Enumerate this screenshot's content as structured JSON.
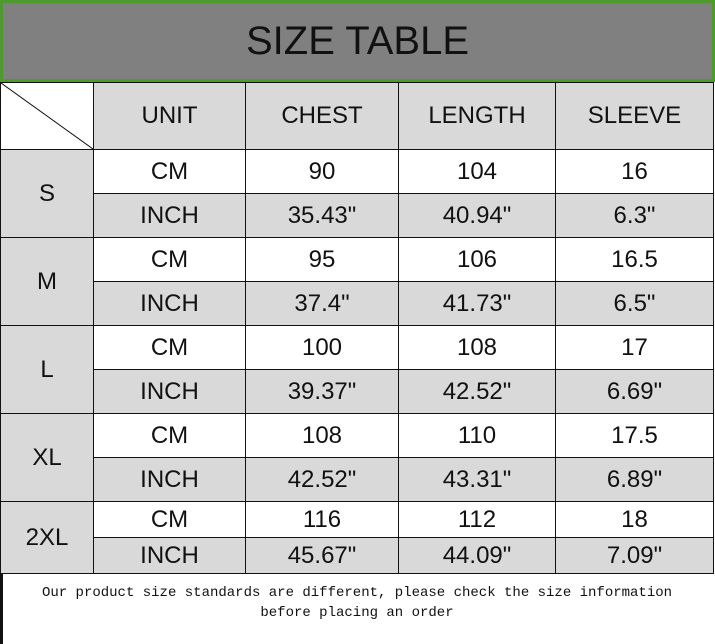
{
  "title": "SIZE TABLE",
  "headers": [
    "UNIT",
    "CHEST",
    "LENGTH",
    "SLEEVE"
  ],
  "sizes": [
    {
      "size": "S",
      "cm": [
        "CM",
        "90",
        "104",
        "16"
      ],
      "inch": [
        "INCH",
        "35.43\"",
        "40.94\"",
        "6.3\""
      ]
    },
    {
      "size": "M",
      "cm": [
        "CM",
        "95",
        "106",
        "16.5"
      ],
      "inch": [
        "INCH",
        "37.4\"",
        "41.73\"",
        "6.5\""
      ]
    },
    {
      "size": "L",
      "cm": [
        "CM",
        "100",
        "108",
        "17"
      ],
      "inch": [
        "INCH",
        "39.37\"",
        "42.52\"",
        "6.69\""
      ]
    },
    {
      "size": "XL",
      "cm": [
        "CM",
        "108",
        "110",
        "17.5"
      ],
      "inch": [
        "INCH",
        "42.52\"",
        "43.31\"",
        "6.89\""
      ]
    },
    {
      "size": "2XL",
      "cm": [
        "CM",
        "116",
        "112",
        "18"
      ],
      "inch": [
        "INCH",
        "45.67\"",
        "44.09\"",
        "7.09\""
      ]
    }
  ],
  "footer": {
    "line1": "Our product size standards are different, please check the size information",
    "line2": "before placing an order"
  },
  "colors": {
    "title_bg": "#808080",
    "title_border": "#4e9a2e",
    "cell_gray": "#d9d9d9"
  }
}
